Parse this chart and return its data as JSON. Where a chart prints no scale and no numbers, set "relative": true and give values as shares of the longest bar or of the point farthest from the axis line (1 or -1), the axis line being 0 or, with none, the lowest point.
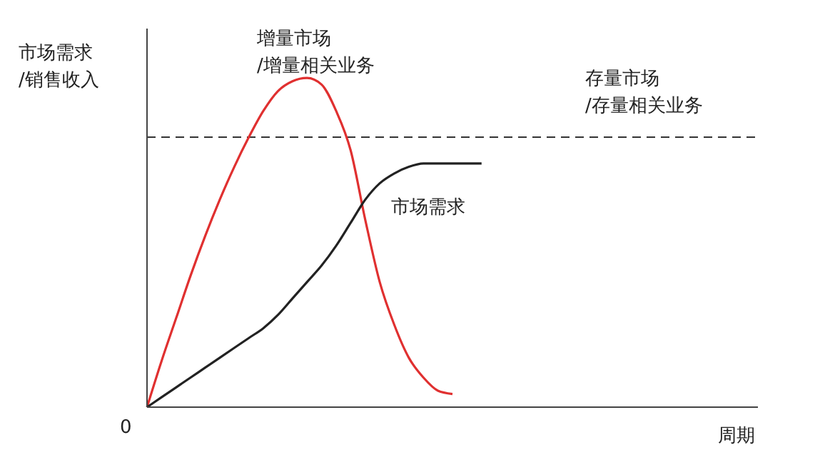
{
  "chart_data": {
    "type": "line",
    "relative": true,
    "xlabel": "周期",
    "ylabel": "市场需求\n/销售收入",
    "annotations": [
      "0"
    ],
    "categories": [
      null,
      null,
      null,
      null,
      null,
      null,
      null,
      null,
      null,
      null,
      null,
      null,
      null,
      null,
      null,
      null,
      null,
      null,
      null,
      null,
      null,
      null,
      null,
      null,
      null,
      null,
      null,
      null,
      null,
      null,
      null,
      null,
      null,
      null,
      null,
      null,
      null,
      null,
      null,
      null,
      null,
      null,
      null
    ],
    "series": [
      {
        "name": "增量市场\n/增量相关业务",
        "color": "#e03030",
        "values": [
          0,
          0.14,
          0.27,
          0.4,
          0.52,
          0.63,
          0.73,
          0.82,
          0.9,
          0.96,
          0.99,
          1,
          0.98,
          0.9,
          0.78,
          0.57,
          0.38,
          0.25,
          0.15,
          0.09,
          0.05,
          0.04,
          null,
          null,
          null,
          null,
          null,
          null,
          null,
          null,
          null,
          null,
          null,
          null,
          null,
          null,
          null,
          null,
          null,
          null,
          null,
          null,
          null
        ]
      },
      {
        "name": "市场需求",
        "color": "#222222",
        "values": [
          0,
          0.03,
          0.06,
          0.09,
          0.12,
          0.15,
          0.18,
          0.21,
          0.24,
          0.28,
          0.33,
          0.38,
          0.43,
          0.49,
          0.56,
          0.63,
          0.68,
          0.71,
          0.73,
          0.74,
          0.74,
          0.74,
          0.74,
          0.74,
          null,
          null,
          null,
          null,
          null,
          null,
          null,
          null,
          null,
          null,
          null,
          null,
          null,
          null,
          null,
          null,
          null,
          null,
          null
        ]
      }
    ],
    "ref_lines": [
      {
        "axis": "y",
        "value": 0.82,
        "label": "存量市场\n/存量相关业务",
        "color": "#333333",
        "line_style": "dashed"
      }
    ],
    "legend": false,
    "grid": false
  }
}
